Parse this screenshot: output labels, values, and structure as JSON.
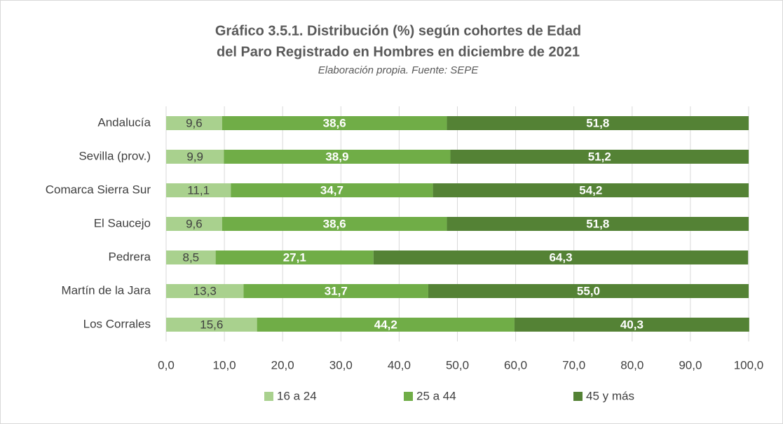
{
  "chart_data": {
    "type": "stacked-bar-horizontal",
    "title": [
      "Gráfico 3.5.1. Distribución (%) según cohortes de Edad",
      "del Paro Registrado en Hombres en diciembre de 2021"
    ],
    "subtitle": "Elaboración propia. Fuente: SEPE",
    "categories": [
      "Andalucía",
      "Sevilla (prov.)",
      "Comarca Sierra Sur",
      "El Saucejo",
      "Pedrera",
      "Martín de la Jara",
      "Los Corrales"
    ],
    "series": [
      {
        "name": "16 a 24",
        "color": "#a9d18e",
        "label_color": "#404040",
        "values": [
          9.6,
          9.9,
          11.1,
          9.6,
          8.5,
          13.3,
          15.6
        ],
        "value_labels": [
          "9,6",
          "9,9",
          "11,1",
          "9,6",
          "8,5",
          "13,3",
          "15,6"
        ]
      },
      {
        "name": "25 a 44",
        "color": "#70ad47",
        "label_color": "#ffffff",
        "values": [
          38.6,
          38.9,
          34.7,
          38.6,
          27.1,
          31.7,
          44.2
        ],
        "value_labels": [
          "38,6",
          "38,9",
          "34,7",
          "38,6",
          "27,1",
          "31,7",
          "44,2"
        ]
      },
      {
        "name": "45 y más",
        "color": "#548235",
        "label_color": "#ffffff",
        "values": [
          51.8,
          51.2,
          54.2,
          51.8,
          64.3,
          55.0,
          40.3
        ],
        "value_labels": [
          "51,8",
          "51,2",
          "54,2",
          "51,8",
          "64,3",
          "55,0",
          "40,3"
        ]
      }
    ],
    "xlim": [
      0,
      100
    ],
    "xticks": [
      {
        "value": 0,
        "label": "0,0"
      },
      {
        "value": 10,
        "label": "10,0"
      },
      {
        "value": 20,
        "label": "20,0"
      },
      {
        "value": 30,
        "label": "30,0"
      },
      {
        "value": 40,
        "label": "40,0"
      },
      {
        "value": 50,
        "label": "50,0"
      },
      {
        "value": 60,
        "label": "60,0"
      },
      {
        "value": 70,
        "label": "70,0"
      },
      {
        "value": 80,
        "label": "80,0"
      },
      {
        "value": 90,
        "label": "90,0"
      },
      {
        "value": 100,
        "label": "100,0"
      }
    ],
    "grid": true,
    "legend": "bottom"
  }
}
